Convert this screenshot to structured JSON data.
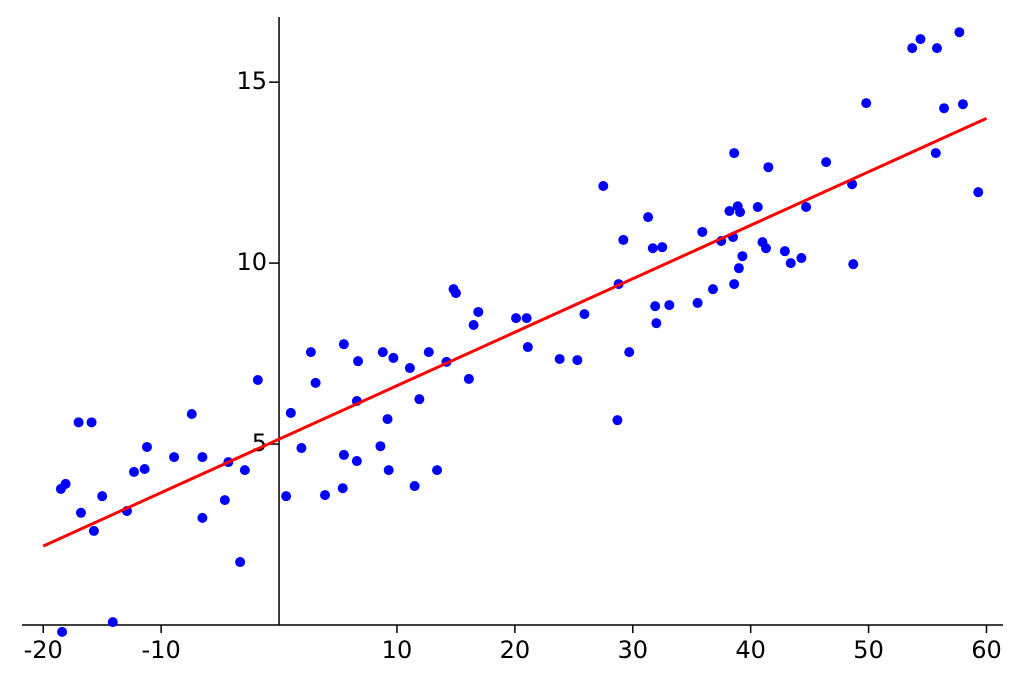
{
  "chart_data": {
    "type": "scatter",
    "xlim": [
      -21.8,
      61.4
    ],
    "ylim": [
      0,
      16.8
    ],
    "xticks": [
      -20,
      -10,
      10,
      20,
      30,
      40,
      50,
      60
    ],
    "yticks": [
      5,
      10,
      15
    ],
    "series": [
      {
        "color": "#0000ff",
        "x": [
          -18.4,
          -14.1,
          -18.5,
          -18.1,
          -17.0,
          -15.9,
          -16.8,
          -15.7,
          -15.0,
          -12.9,
          -12.3,
          -11.4,
          -11.2,
          -8.9,
          -7.4,
          -6.5,
          -6.5,
          -4.6,
          -4.3,
          -3.3,
          -2.9,
          -1.8,
          0.6,
          1.0,
          1.9,
          2.7,
          3.1,
          3.9,
          5.5,
          5.5,
          5.4,
          6.6,
          6.6,
          6.7,
          8.8,
          9.7,
          8.6,
          9.2,
          9.3,
          11.1,
          11.5,
          11.9,
          12.7,
          13.4,
          14.2,
          14.8,
          15.0,
          16.1,
          16.5,
          16.9,
          20.1,
          21.0,
          21.1,
          23.8,
          25.3,
          25.9,
          27.5,
          28.8,
          28.7,
          29.2,
          29.7,
          31.3,
          31.7,
          31.9,
          32.0,
          32.5,
          33.1,
          35.5,
          35.9,
          36.8,
          37.5,
          38.2,
          38.6,
          38.5,
          38.6,
          38.9,
          39.1,
          39.0,
          39.3,
          40.6,
          41.0,
          41.3,
          41.5,
          42.9,
          43.4,
          44.3,
          44.7,
          46.4,
          48.6,
          48.7,
          49.8,
          53.7,
          54.4,
          55.8,
          55.7,
          56.4,
          57.7,
          58.0,
          59.3
        ],
        "values": [
          -0.19,
          0.08,
          3.76,
          3.9,
          5.6,
          5.6,
          3.1,
          2.6,
          3.56,
          3.15,
          4.23,
          4.31,
          4.92,
          4.64,
          5.83,
          4.64,
          2.96,
          3.45,
          4.5,
          1.74,
          4.28,
          6.77,
          3.56,
          5.86,
          4.89,
          7.54,
          6.69,
          3.59,
          7.76,
          4.7,
          3.78,
          4.53,
          6.19,
          7.29,
          7.54,
          7.38,
          4.94,
          5.69,
          4.28,
          7.1,
          3.84,
          6.24,
          7.54,
          4.28,
          7.27,
          9.28,
          9.17,
          6.8,
          8.29,
          8.65,
          8.48,
          8.48,
          7.68,
          7.35,
          7.32,
          8.59,
          12.13,
          9.42,
          5.66,
          10.64,
          7.54,
          11.27,
          10.41,
          8.81,
          8.34,
          10.44,
          8.84,
          8.9,
          10.86,
          9.28,
          10.61,
          11.44,
          13.04,
          10.72,
          9.42,
          11.57,
          11.41,
          9.86,
          10.19,
          11.55,
          10.58,
          10.41,
          12.65,
          10.33,
          10.0,
          10.14,
          11.55,
          12.79,
          12.18,
          9.97,
          14.42,
          15.94,
          16.19,
          15.94,
          13.04,
          14.28,
          16.38,
          14.39,
          11.96
        ]
      },
      {
        "type": "line",
        "color": "#ff0000",
        "x": [
          -20,
          60
        ],
        "values": [
          2.18,
          14.0
        ]
      }
    ]
  }
}
